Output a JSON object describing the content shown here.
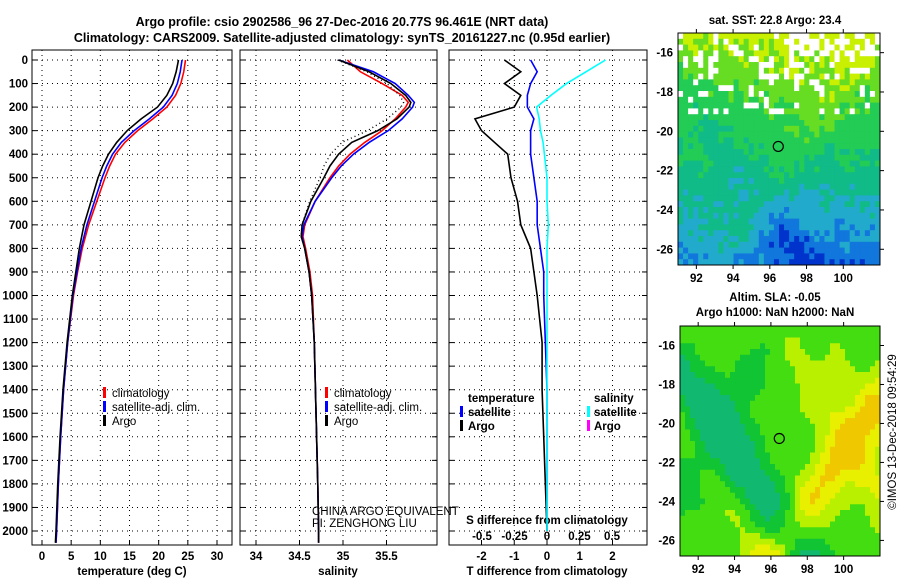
{
  "title_line1": "Argo profile: csio 2902586_96 27-Dec-2016 20.77S 96.461E (NRT data)",
  "title_line2": "Climatology: CARS2009. Satellite-adjusted climatology: synTS_20161227.nc (0.95d earlier)",
  "credit": "©IMOS 13-Dec-2018 09:54:29",
  "colors": {
    "climatology": "#ff0000",
    "satellite": "#0000ff",
    "argo": "#000000",
    "sal_sat": "#00ffff",
    "sal_argo": "#ff00ff"
  },
  "chart_data": [
    {
      "type": "line",
      "xlabel": "temperature (deg C)",
      "ylabel": "",
      "xlim": [
        -2,
        32
      ],
      "ylim": [
        2060,
        -10
      ],
      "xticks": [
        "0",
        "5",
        "10",
        "15",
        "20",
        "25",
        "30"
      ],
      "yticks": [
        "0",
        "100",
        "200",
        "300",
        "400",
        "500",
        "600",
        "700",
        "800",
        "900",
        "1000",
        "1100",
        "1200",
        "1300",
        "1400",
        "1500",
        "1600",
        "1700",
        "1800",
        "1900",
        "2000"
      ],
      "legend": [
        "climatology",
        "satellite-adj. clim.",
        "Argo"
      ],
      "depth": [
        0,
        50,
        100,
        150,
        200,
        250,
        300,
        350,
        400,
        450,
        500,
        600,
        700,
        800,
        900,
        1000,
        1200,
        1400,
        1600,
        1800,
        2000,
        2050
      ],
      "series": [
        {
          "name": "climatology",
          "values": [
            24.6,
            24.3,
            23.8,
            22.9,
            21.4,
            19.0,
            16.4,
            14.2,
            12.6,
            11.6,
            10.8,
            9.4,
            8.0,
            6.9,
            6.1,
            5.4,
            4.4,
            3.7,
            3.2,
            2.8,
            2.5,
            2.4
          ]
        },
        {
          "name": "satellite-adj. clim.",
          "values": [
            24.0,
            23.7,
            23.2,
            22.3,
            20.8,
            18.4,
            15.8,
            13.6,
            12.1,
            11.1,
            10.3,
            9.0,
            7.7,
            6.7,
            6.0,
            5.3,
            4.4,
            3.7,
            3.2,
            2.8,
            2.5,
            2.4
          ]
        },
        {
          "name": "Argo",
          "values": [
            23.4,
            23.0,
            22.4,
            21.4,
            19.8,
            17.0,
            14.6,
            12.8,
            11.4,
            10.4,
            9.6,
            8.4,
            7.2,
            6.4,
            5.8,
            5.2,
            4.3,
            3.6,
            3.1,
            2.7,
            2.4,
            2.3
          ]
        }
      ]
    },
    {
      "type": "line",
      "xlabel": "salinity",
      "xlim": [
        33.75,
        36.0
      ],
      "ylim": [
        2060,
        -10
      ],
      "xticks": [
        "34",
        "34.5",
        "35",
        "35.5"
      ],
      "legend": [
        "climatology",
        "satellite-adj. clim.",
        "Argo"
      ],
      "annotation": [
        "CHINA ARGO EQUIVALENT",
        "PI: ZENGHONG LIU"
      ],
      "depth": [
        0,
        50,
        100,
        150,
        180,
        200,
        250,
        300,
        350,
        400,
        450,
        500,
        600,
        700,
        750,
        800,
        900,
        1000,
        1200,
        1500,
        1800,
        2000,
        2050
      ],
      "series": [
        {
          "name": "climatology",
          "values": [
            35.05,
            35.2,
            35.45,
            35.68,
            35.75,
            35.72,
            35.6,
            35.45,
            35.25,
            35.08,
            34.95,
            34.85,
            34.68,
            34.56,
            34.54,
            34.57,
            34.62,
            34.65,
            34.67,
            34.69,
            34.71,
            34.72,
            34.72
          ]
        },
        {
          "name": "satellite-adj. clim.",
          "values": [
            34.95,
            35.35,
            35.6,
            35.75,
            35.82,
            35.8,
            35.68,
            35.52,
            35.3,
            35.12,
            34.98,
            34.87,
            34.68,
            34.55,
            34.53,
            34.56,
            34.61,
            34.64,
            34.67,
            34.69,
            34.71,
            34.72,
            34.72
          ]
        },
        {
          "name": "Argo",
          "values": [
            34.95,
            35.3,
            35.55,
            35.72,
            35.78,
            35.76,
            35.62,
            35.4,
            35.1,
            34.95,
            34.85,
            34.78,
            34.63,
            34.53,
            34.52,
            34.56,
            34.61,
            34.64,
            34.67,
            34.69,
            34.71,
            34.72,
            34.72
          ]
        }
      ]
    },
    {
      "type": "line",
      "xlabel": "T difference from climatology",
      "x2label": "S difference from climatology",
      "xlim": [
        -3,
        3
      ],
      "ylim": [
        2060,
        -10
      ],
      "xticks": [
        "-2",
        "-1",
        "0",
        "1",
        "2"
      ],
      "x2ticks": [
        "-0.5",
        "-0.25",
        "0",
        "0.25",
        "0.5"
      ],
      "legend_temperature": {
        "title": "temperature",
        "items": [
          "satellite",
          "Argo"
        ]
      },
      "legend_salinity": {
        "title": "salinity",
        "items": [
          "satellite",
          "Argo"
        ]
      },
      "depth": [
        0,
        50,
        100,
        150,
        200,
        250,
        300,
        350,
        400,
        500,
        600,
        700,
        800,
        900,
        1000,
        1200,
        1400,
        1600,
        1800,
        2000
      ],
      "series": [
        {
          "name": "temperature satellite",
          "axis": "T",
          "values": [
            -0.5,
            -0.3,
            -0.5,
            -0.6,
            -0.6,
            -0.4,
            -0.5,
            -0.5,
            -0.5,
            -0.4,
            -0.3,
            -0.3,
            -0.2,
            -0.1,
            -0.1,
            -0.05,
            0,
            0,
            0,
            0
          ]
        },
        {
          "name": "temperature Argo",
          "axis": "T",
          "values": [
            -1.3,
            -0.8,
            -1.3,
            -0.8,
            -1.0,
            -2.2,
            -2.0,
            -1.6,
            -1.2,
            -1.1,
            -0.9,
            -0.8,
            -0.5,
            -0.4,
            -0.3,
            -0.15,
            -0.15,
            -0.1,
            -0.05,
            0
          ]
        },
        {
          "name": "salinity satellite",
          "axis": "S",
          "values": [
            0.45,
            0.3,
            0.15,
            0.03,
            -0.08,
            -0.06,
            -0.05,
            -0.03,
            -0.02,
            0,
            0,
            0.01,
            0,
            0,
            0,
            0,
            0,
            0,
            0,
            0
          ]
        }
      ]
    },
    {
      "type": "heatmap",
      "title": "sat. SST: 22.8 Argo: 23.4",
      "xticks": [
        "92",
        "94",
        "96",
        "98",
        "100"
      ],
      "yticks": [
        "-16",
        "-18",
        "-20",
        "-22",
        "-24",
        "-26"
      ],
      "xlim": [
        91,
        102
      ],
      "ylim": [
        -26.8,
        -15
      ],
      "marker": {
        "lon": 96.461,
        "lat": -20.77
      }
    },
    {
      "type": "heatmap",
      "title": "Altim. SLA: -0.05",
      "subtitle": "Argo h1000: NaN h2000: NaN",
      "xticks": [
        "92",
        "94",
        "96",
        "98",
        "100"
      ],
      "yticks": [
        "-16",
        "-18",
        "-20",
        "-22",
        "-24",
        "-26"
      ],
      "xlim": [
        91,
        102
      ],
      "ylim": [
        -26.8,
        -15
      ],
      "marker": {
        "lon": 96.461,
        "lat": -20.77
      }
    }
  ]
}
